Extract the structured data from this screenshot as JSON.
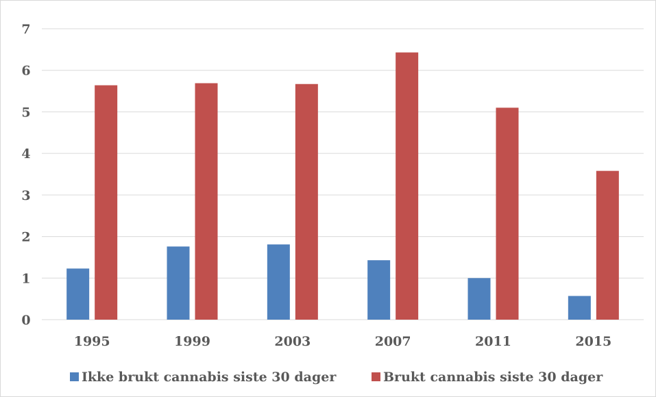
{
  "chart_data": {
    "type": "bar",
    "categories": [
      "1995",
      "1999",
      "2003",
      "2007",
      "2011",
      "2015"
    ],
    "series": [
      {
        "name": "Ikke brukt cannabis siste 30 dager",
        "color": "#4f81bd",
        "values": [
          1.23,
          1.76,
          1.81,
          1.43,
          1.0,
          0.57
        ]
      },
      {
        "name": "Brukt cannabis siste 30 dager",
        "color": "#c0504d",
        "values": [
          5.64,
          5.69,
          5.67,
          6.43,
          5.1,
          3.58
        ]
      }
    ],
    "yticks": [
      "0",
      "1",
      "2",
      "3",
      "4",
      "5",
      "6",
      "7"
    ],
    "ylim": [
      0,
      7
    ],
    "grid": true,
    "legend_position": "bottom",
    "title": "",
    "xlabel": "",
    "ylabel": ""
  }
}
